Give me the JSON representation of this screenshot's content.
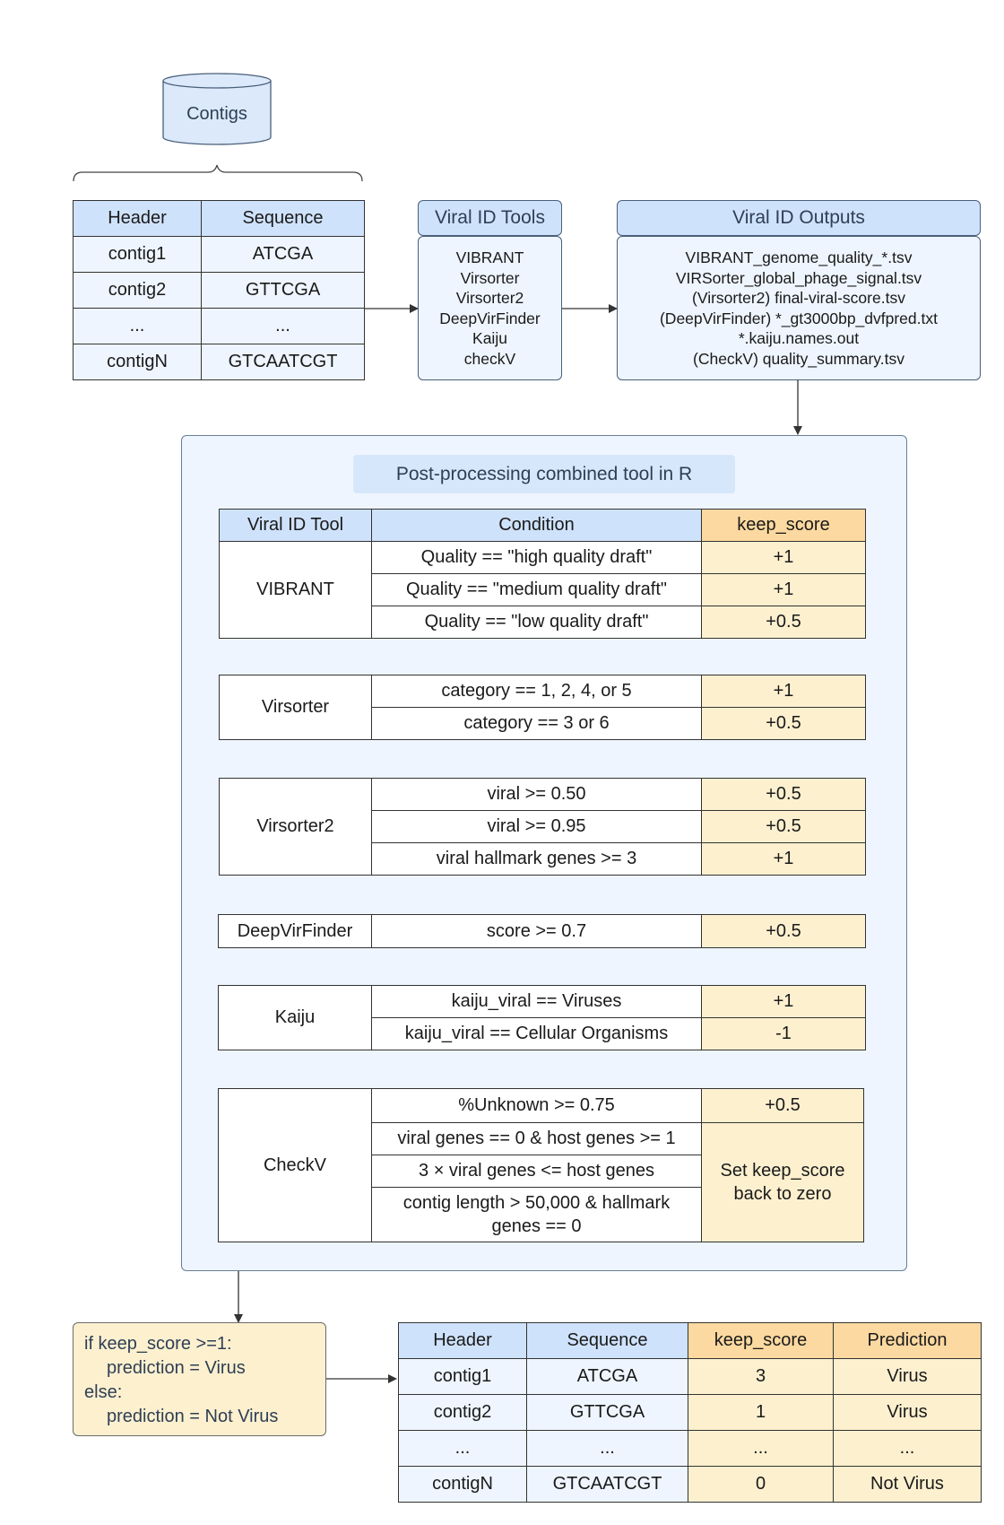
{
  "contigs_db": "Contigs",
  "input_table": {
    "headers": [
      "Header",
      "Sequence"
    ],
    "rows": [
      [
        "contig1",
        "ATCGA"
      ],
      [
        "contig2",
        "GTTCGA"
      ],
      [
        "...",
        "..."
      ],
      [
        "contigN",
        "GTCAATCGT"
      ]
    ]
  },
  "tools": {
    "title": "Viral ID Tools",
    "items": [
      "VIBRANT",
      "Virsorter",
      "Virsorter2",
      "DeepVirFinder",
      "Kaiju",
      "checkV"
    ]
  },
  "outputs": {
    "title": "Viral ID Outputs",
    "items": [
      "VIBRANT_genome_quality_*.tsv",
      "VIRSorter_global_phage_signal.tsv",
      "(Virsorter2) final-viral-score.tsv",
      "(DeepVirFinder) *_gt3000bp_dvfpred.txt",
      "*.kaiju.names.out",
      "(CheckV) quality_summary.tsv"
    ]
  },
  "post": {
    "title": "Post-processing combined tool in R",
    "headers": [
      "Viral ID Tool",
      "Condition",
      "keep_score"
    ],
    "stages": [
      {
        "tool": "VIBRANT",
        "rows": [
          {
            "condition": "Quality == \"high quality draft\"",
            "score": "+1"
          },
          {
            "condition": "Quality == \"medium quality draft\"",
            "score": "+1"
          },
          {
            "condition": "Quality == \"low quality draft\"",
            "score": "+0.5"
          }
        ]
      },
      {
        "tool": "Virsorter",
        "rows": [
          {
            "condition": "category == 1, 2, 4, or 5",
            "score": "+1"
          },
          {
            "condition": "category == 3 or 6",
            "score": "+0.5"
          }
        ]
      },
      {
        "tool": "Virsorter2",
        "rows": [
          {
            "condition": "viral >= 0.50",
            "score": "+0.5"
          },
          {
            "condition": "viral >= 0.95",
            "score": "+0.5"
          },
          {
            "condition": "viral hallmark genes >= 3",
            "score": "+1"
          }
        ]
      },
      {
        "tool": "DeepVirFinder",
        "rows": [
          {
            "condition": "score >= 0.7",
            "score": "+0.5"
          }
        ]
      },
      {
        "tool": "Kaiju",
        "rows": [
          {
            "condition": "kaiju_viral == Viruses",
            "score": "+1"
          },
          {
            "condition": "kaiju_viral == Cellular Organisms",
            "score": "-1"
          }
        ]
      },
      {
        "tool": "CheckV",
        "rows": [
          {
            "condition": "%Unknown >= 0.75",
            "score": "+0.5"
          },
          {
            "condition": "viral genes == 0 & host genes >= 1"
          },
          {
            "condition": "3 × viral genes <= host genes"
          },
          {
            "condition": "contig length > 50,000 & hallmark genes == 0"
          }
        ],
        "reset_text": "Set keep_score back to zero"
      }
    ]
  },
  "rule_lines": [
    "if keep_score >=1:",
    "prediction = Virus",
    "else:",
    "prediction = Not Virus"
  ],
  "result_table": {
    "headers": [
      "Header",
      "Sequence",
      "keep_score",
      "Prediction"
    ],
    "rows": [
      [
        "contig1",
        "ATCGA",
        "3",
        "Virus"
      ],
      [
        "contig2",
        "GTTCGA",
        "1",
        "Virus"
      ],
      [
        "...",
        "...",
        "...",
        "..."
      ],
      [
        "contigN",
        "GTCAATCGT",
        "0",
        "Not Virus"
      ]
    ]
  },
  "colors": {
    "header_blue": "#cfe2fb",
    "light_blue": "#eef5fe",
    "score_yellow": "#fdf0cf",
    "score_orange": "#fcd9a0"
  }
}
